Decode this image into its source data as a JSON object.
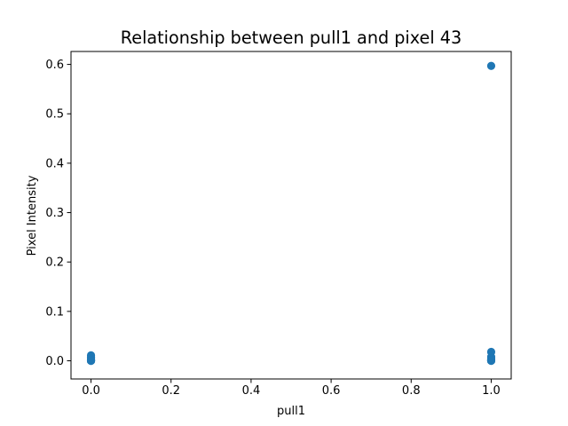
{
  "chart_data": {
    "type": "scatter",
    "title": "Relationship between pull1 and pixel 43",
    "xlabel": "pull1",
    "ylabel": "Pixel Intensity",
    "xlim": [
      -0.05,
      1.05
    ],
    "ylim": [
      -0.0368,
      0.6262
    ],
    "xticks": [
      0.0,
      0.2,
      0.4,
      0.6,
      0.8,
      1.0
    ],
    "xtick_labels": [
      "0.0",
      "0.2",
      "0.4",
      "0.6",
      "0.8",
      "1.0"
    ],
    "yticks": [
      0.0,
      0.1,
      0.2,
      0.3,
      0.4,
      0.5,
      0.6
    ],
    "ytick_labels": [
      "0.0",
      "0.1",
      "0.2",
      "0.3",
      "0.4",
      "0.5",
      "0.6"
    ],
    "grid": false,
    "marker_color": "#1f77b4",
    "series": [
      {
        "x": [
          0,
          0,
          0,
          0,
          0,
          0,
          0,
          0,
          1,
          1,
          1,
          1,
          1,
          1,
          1,
          1
        ],
        "y": [
          0.011,
          0.007,
          0.004,
          0.002,
          0.001,
          0.0,
          0.0,
          0.0,
          0.597,
          0.018,
          0.008,
          0.004,
          0.002,
          0.001,
          0.0,
          0.0
        ]
      }
    ]
  }
}
